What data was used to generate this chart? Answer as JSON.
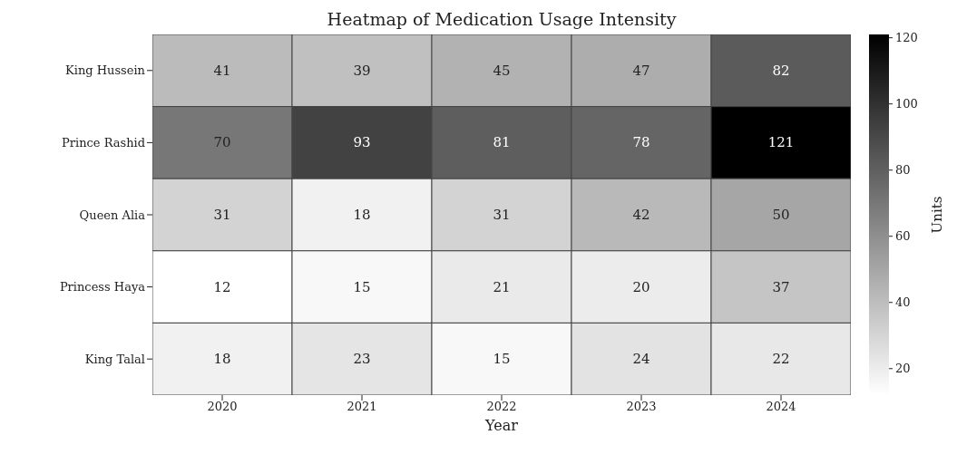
{
  "chart_data": {
    "type": "heatmap",
    "title": "Heatmap of Medication Usage Intensity",
    "xlabel": "Year",
    "clabel": "Units",
    "categories": [
      "2020",
      "2021",
      "2022",
      "2023",
      "2024"
    ],
    "y_categories": [
      "King Hussein",
      "Prince Rashid",
      "Queen Alia",
      "Princess Haya",
      "King Talal"
    ],
    "cells": [
      [
        41,
        39,
        45,
        47,
        82
      ],
      [
        70,
        93,
        81,
        78,
        121
      ],
      [
        31,
        18,
        31,
        42,
        50
      ],
      [
        12,
        15,
        21,
        20,
        37
      ],
      [
        18,
        23,
        15,
        24,
        22
      ]
    ],
    "data_labels": true,
    "clim": [
      12,
      121
    ],
    "cticks": [
      20,
      40,
      60,
      80,
      100,
      120
    ]
  }
}
